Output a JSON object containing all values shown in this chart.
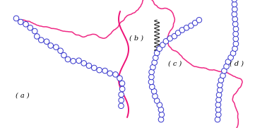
{
  "background_color": "#ffffff",
  "label_a": "( a )",
  "label_b": "( b )",
  "label_c": "( c )",
  "label_d": "( d )",
  "circle_color": "#3333cc",
  "chain_color": "#999999",
  "pink_color": "#ee1177",
  "dark_color": "#222222",
  "label_fontsize": 7,
  "figwidth": 3.78,
  "figheight": 1.81,
  "dpi": 100
}
